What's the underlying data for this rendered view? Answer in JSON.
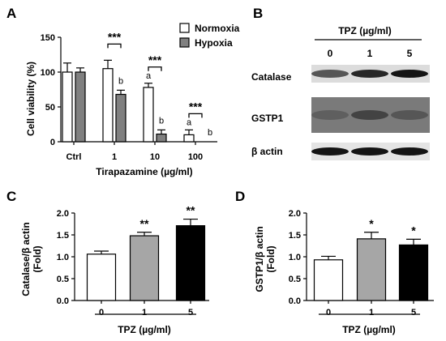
{
  "panel_labels": {
    "a": "A",
    "b": "B",
    "c": "C",
    "d": "D"
  },
  "chart_data": [
    {
      "panel": "A",
      "type": "bar",
      "categories": [
        "Ctrl",
        "1",
        "10",
        "100"
      ],
      "series": [
        {
          "name": "Normoxia",
          "values": [
            100,
            105,
            78,
            10
          ],
          "errors": [
            13,
            12,
            6,
            7
          ],
          "fill": "#ffffff"
        },
        {
          "name": "Hypoxia",
          "values": [
            100,
            68,
            11,
            0
          ],
          "errors": [
            6,
            6,
            6,
            0
          ],
          "fill": "#808080"
        }
      ],
      "xlabel": "Tirapazamine (µg/ml)",
      "ylabel": "Cell viability (%)",
      "ylim": [
        0,
        150
      ],
      "yticks": [
        "0",
        "50",
        "100",
        "150"
      ],
      "legend": "top-right",
      "significance": [
        {
          "category": "1",
          "stars": "***",
          "letters": {
            "Normoxia": "",
            "Hypoxia": "b"
          }
        },
        {
          "category": "10",
          "stars": "***",
          "letters": {
            "Normoxia": "a",
            "Hypoxia": "b"
          }
        },
        {
          "category": "100",
          "stars": "***",
          "letters": {
            "Normoxia": "a",
            "Hypoxia": "b"
          }
        }
      ]
    },
    {
      "panel": "C",
      "type": "bar",
      "categories": [
        "0",
        "1",
        "5"
      ],
      "values": [
        1.06,
        1.48,
        1.71
      ],
      "errors": [
        0.07,
        0.08,
        0.15
      ],
      "fills": [
        "#ffffff",
        "#a6a6a6",
        "#000000"
      ],
      "stars": [
        "",
        "**",
        "**"
      ],
      "xlabel": "TPZ (µg/ml)",
      "ylabel": "Catalase/β actin (Fold)",
      "ylim": [
        0,
        2.0
      ],
      "yticks": [
        "0.0",
        "0.5",
        "1.0",
        "1.5",
        "2.0"
      ]
    },
    {
      "panel": "D",
      "type": "bar",
      "categories": [
        "0",
        "1",
        "5"
      ],
      "values": [
        0.93,
        1.41,
        1.27
      ],
      "errors": [
        0.08,
        0.15,
        0.13
      ],
      "fills": [
        "#ffffff",
        "#a6a6a6",
        "#000000"
      ],
      "stars": [
        "",
        "*",
        "*"
      ],
      "xlabel": "TPZ (µg/ml)",
      "ylabel": "GSTP1/β actin (Fold)",
      "ylim": [
        0,
        2.0
      ],
      "yticks": [
        "0.0",
        "0.5",
        "1.0",
        "1.5",
        "2.0"
      ]
    }
  ],
  "blot": {
    "title": "TPZ (µg/ml)",
    "lanes": [
      "0",
      "1",
      "5"
    ],
    "rows": [
      {
        "label": "Catalase",
        "intensity": [
          0.6,
          0.85,
          0.95
        ]
      },
      {
        "label": "GSTP1",
        "intensity": [
          0.55,
          0.7,
          0.6
        ]
      },
      {
        "label": "β actin",
        "intensity": [
          0.95,
          0.95,
          0.95
        ]
      }
    ]
  }
}
